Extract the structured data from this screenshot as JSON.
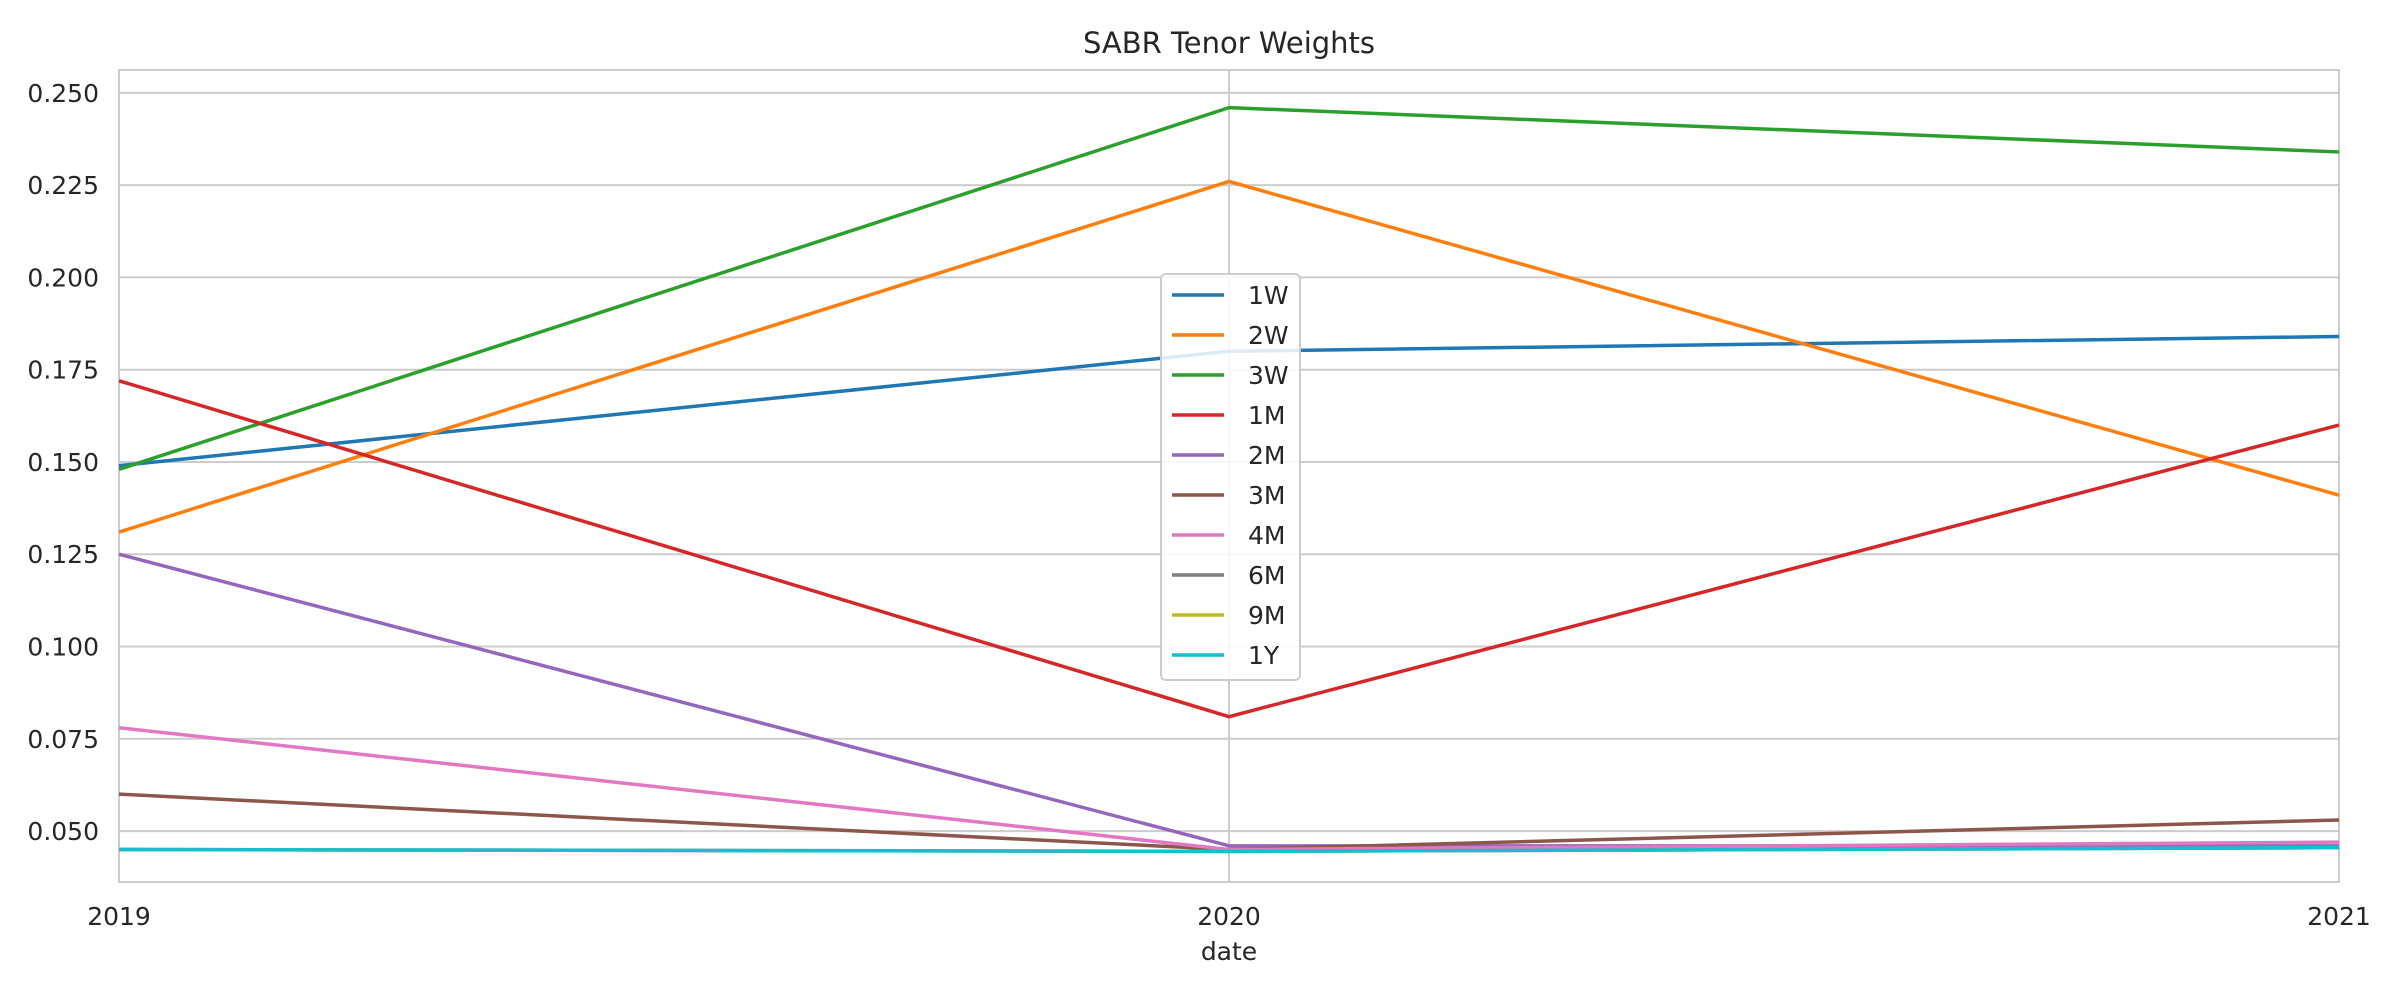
{
  "chart_data": {
    "type": "line",
    "title": "SABR Tenor Weights",
    "xlabel": "date",
    "ylabel": "",
    "x": [
      "2019",
      "2020",
      "2021"
    ],
    "ylim": [
      0.0362,
      0.2562
    ],
    "yticks": [
      "0.050",
      "0.075",
      "0.100",
      "0.125",
      "0.150",
      "0.175",
      "0.200",
      "0.225",
      "0.250"
    ],
    "grid": true,
    "legend_position": "center",
    "series": [
      {
        "name": "1W",
        "color": "#1f77b4",
        "values": [
          0.149,
          0.18,
          0.184
        ]
      },
      {
        "name": "2W",
        "color": "#ff7f0e",
        "values": [
          0.131,
          0.226,
          0.141
        ]
      },
      {
        "name": "3W",
        "color": "#2ca02c",
        "values": [
          0.148,
          0.246,
          0.234
        ]
      },
      {
        "name": "1M",
        "color": "#d62728",
        "values": [
          0.172,
          0.081,
          0.16
        ]
      },
      {
        "name": "2M",
        "color": "#9467bd",
        "values": [
          0.125,
          0.046,
          0.046
        ]
      },
      {
        "name": "3M",
        "color": "#8c564b",
        "values": [
          0.06,
          0.045,
          0.053
        ]
      },
      {
        "name": "4M",
        "color": "#e377c2",
        "values": [
          0.078,
          0.045,
          0.047
        ]
      },
      {
        "name": "6M",
        "color": "#7f7f7f",
        "values": [
          0.045,
          0.0445,
          0.0455
        ]
      },
      {
        "name": "9M",
        "color": "#bcbd22",
        "values": [
          0.045,
          0.0445,
          0.0455
        ]
      },
      {
        "name": "1Y",
        "color": "#17becf",
        "values": [
          0.045,
          0.0445,
          0.0455
        ]
      }
    ]
  }
}
